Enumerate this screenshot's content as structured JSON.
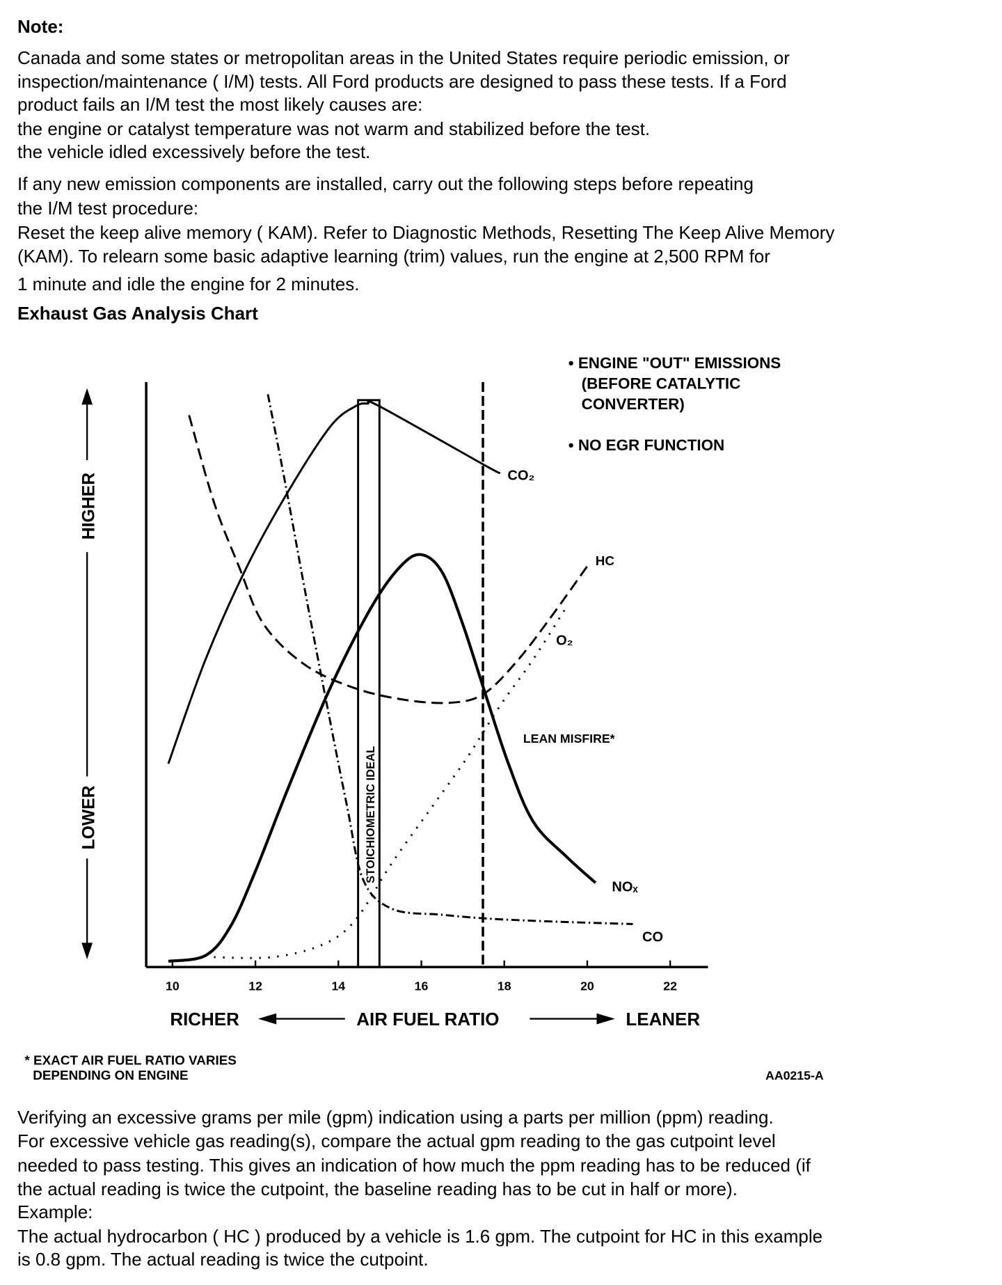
{
  "note_heading": "Note:",
  "para1": [
    "Canada and some states or metropolitan areas in the United States require periodic emission, or",
    "inspection/maintenance ( I/M) tests. All Ford products are designed to pass these tests. If a Ford",
    "product fails an I/M test the most likely causes are:",
    "the engine or catalyst temperature was not warm and stabilized before the test.",
    "the vehicle idled excessively before the test."
  ],
  "para2": [
    "If any new emission components are installed, carry out the following steps before repeating",
    "the I/M test procedure:",
    "Reset the keep alive memory ( KAM). Refer to Diagnostic Methods, Resetting The Keep Alive Memory",
    "(KAM). To relearn some basic adaptive learning (trim) values, run the engine at 2,500 RPM for",
    "1 minute and  idle the engine for 2 minutes."
  ],
  "chart_heading": "Exhaust Gas Analysis Chart",
  "para3": [
    "Verifying an excessive grams per mile (gpm) indication using a parts per million (ppm) reading.",
    "For excessive vehicle gas reading(s), compare the actual gpm reading to the gas cutpoint level",
    "needed to pass testing. This gives an indication of how much the ppm reading has to be reduced (if",
    "the actual reading is twice the cutpoint, the baseline reading has to be cut in half or more).",
    "Example:",
    "The actual hydrocarbon ( HC ) produced by a vehicle is 1.6 gpm. The cutpoint for HC in this example",
    "is 0.8 gpm. The actual reading is twice the cutpoint."
  ],
  "chart_data": {
    "type": "line",
    "title": "Exhaust Gas Analysis Chart",
    "xlabel": "AIR FUEL RATIO",
    "xlabel_left": "RICHER",
    "xlabel_right": "LEANER",
    "ylabel_high": "HIGHER",
    "ylabel_low": "LOWER",
    "xticks": [
      "10",
      "12",
      "14",
      "16",
      "18",
      "20",
      "22"
    ],
    "xlim": [
      9.35,
      23
    ],
    "ylim": [
      0,
      100
    ],
    "grid": false,
    "notes": [
      "• ENGINE \"OUT\" EMISSIONS",
      "(BEFORE CATALYTIC",
      "CONVERTER)",
      "• NO EGR FUNCTION"
    ],
    "stoichiometric": {
      "label": "STOICHIOMETRIC IDEAL",
      "x": [
        14.5,
        15.0
      ]
    },
    "lean_misfire": {
      "label": "LEAN MISFIRE*",
      "x": 17.5
    },
    "footnote": [
      "* EXACT AIR FUEL RATIO VARIES",
      "DEPENDING ON ENGINE"
    ],
    "figure_id": "AA0215-A",
    "series": [
      {
        "name": "CO₂",
        "style": "solid",
        "x": [
          9.9,
          10.8,
          11.8,
          12.8,
          13.8,
          14.4,
          14.7,
          15.0,
          17.5,
          17.9
        ],
        "y": [
          35,
          53,
          69,
          82,
          93,
          96.5,
          97,
          96.5,
          86.5,
          85
        ]
      },
      {
        "name": "NOₓ",
        "style": "solid-bold",
        "x": [
          9.9,
          10.8,
          11.4,
          12.0,
          12.8,
          13.8,
          14.8,
          15.5,
          16.0,
          16.5,
          17.0,
          17.5,
          18.1,
          18.7,
          19.5,
          20.2
        ],
        "y": [
          1,
          2,
          7,
          16.5,
          31,
          48,
          62,
          69,
          71,
          68,
          59,
          48,
          35,
          25,
          19,
          14.5
        ]
      },
      {
        "name": "HC",
        "style": "dashed",
        "x": [
          10.4,
          11.0,
          11.6,
          12.2,
          13.2,
          14.4,
          15.6,
          16.7,
          17.5,
          18.3,
          19.1,
          20.0
        ],
        "y": [
          95,
          80,
          69,
          59,
          52,
          48,
          46,
          45.5,
          47,
          52.6,
          60,
          69
        ]
      },
      {
        "name": "CO",
        "style": "dash-dot",
        "x": [
          12.3,
          12.7,
          13.2,
          13.7,
          14.2,
          14.6,
          15.3,
          16.5,
          17.7,
          19.3,
          21.1
        ],
        "y": [
          98.6,
          84,
          64.6,
          46,
          28,
          15,
          10,
          9,
          8.3,
          7.8,
          7.4
        ]
      },
      {
        "name": "O₂",
        "style": "dotted",
        "x": [
          11.0,
          12.4,
          13.6,
          14.4,
          15.3,
          16.3,
          17.1,
          17.9,
          18.7,
          19.5
        ],
        "y": [
          1.7,
          1.7,
          3.8,
          8,
          18,
          28,
          36,
          45,
          53,
          62
        ]
      }
    ]
  }
}
